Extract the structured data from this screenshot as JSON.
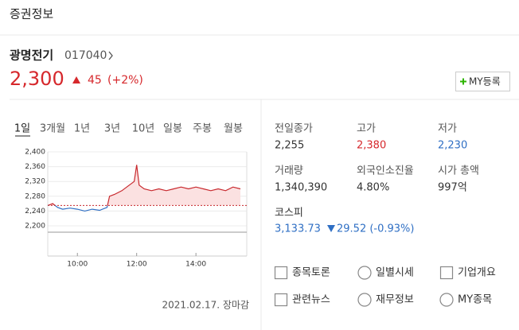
{
  "header": {
    "title": "증권정보"
  },
  "stock": {
    "name": "광명전기",
    "code": "017040",
    "price": "2,300",
    "change": "45",
    "change_pct": "(+2%)",
    "button": "MY등록"
  },
  "tabs": [
    "1일",
    "3개월",
    "1년",
    "3년",
    "10년",
    "일봉",
    "주봉",
    "월봉"
  ],
  "stats": [
    {
      "label": "전일종가",
      "value": "2,255"
    },
    {
      "label": "고가",
      "value": "2,380"
    },
    {
      "label": "저가",
      "value": "2,230"
    },
    {
      "label": "거래량",
      "value": "1,340,390"
    },
    {
      "label": "외국인소진율",
      "value": "4.80%"
    },
    {
      "label": "시가 총액",
      "value": "997억"
    }
  ],
  "index": {
    "label": "코스피",
    "value": "3,133.73",
    "change": "29.52 (-0.93%)"
  },
  "links": [
    "종목토론",
    "일별시세",
    "기업개요",
    "관련뉴스",
    "재무정보",
    "MY종목"
  ],
  "footer": "2021.02.17. 장마감",
  "chart_data": {
    "type": "line",
    "x": [
      "09:00",
      "09:10",
      "09:20",
      "09:30",
      "09:45",
      "10:00",
      "10:15",
      "10:30",
      "10:45",
      "11:00",
      "11:05",
      "11:15",
      "11:30",
      "11:45",
      "11:55",
      "12:00",
      "12:05",
      "12:15",
      "12:30",
      "12:45",
      "13:00",
      "13:15",
      "13:30",
      "13:45",
      "14:00",
      "14:15",
      "14:30",
      "14:45",
      "15:00",
      "15:15",
      "15:30"
    ],
    "values": [
      2255,
      2260,
      2250,
      2245,
      2248,
      2245,
      2240,
      2245,
      2242,
      2250,
      2280,
      2285,
      2295,
      2310,
      2320,
      2365,
      2310,
      2300,
      2295,
      2300,
      2295,
      2300,
      2305,
      2300,
      2305,
      2300,
      2295,
      2300,
      2295,
      2305,
      2300
    ],
    "color": "#c8282d",
    "down_color": "#2f6fc4",
    "fill_color": "#fbe1e1",
    "reference": 2255,
    "xlim": [
      "09:00",
      "15:30"
    ],
    "xticks": [
      "10:00",
      "12:00",
      "14:00"
    ],
    "ylim": [
      2200,
      2400
    ],
    "yticks": [
      {
        "value": 2200,
        "label": "2,200"
      },
      {
        "value": 2240,
        "label": "2,240"
      },
      {
        "value": 2280,
        "label": "2,280"
      },
      {
        "value": 2320,
        "label": "2,320"
      },
      {
        "value": 2360,
        "label": "2,360"
      },
      {
        "value": 2400,
        "label": "2,400"
      }
    ],
    "grid": true
  }
}
